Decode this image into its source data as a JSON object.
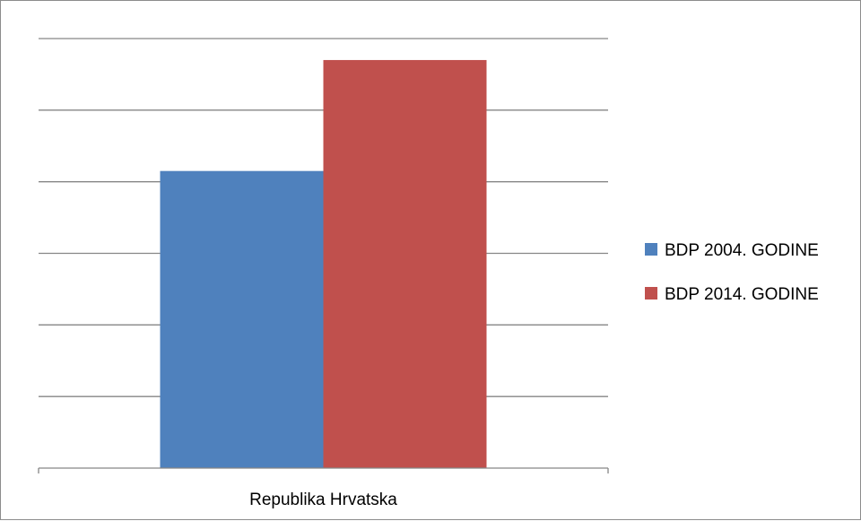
{
  "chart_data": {
    "type": "bar",
    "categories": [
      "Republika Hrvatska"
    ],
    "series": [
      {
        "name": "BDP 2004. GODINE",
        "values": [
          4.15
        ],
        "color": "#4F81BD"
      },
      {
        "name": "BDP 2014. GODINE",
        "values": [
          5.7
        ],
        "color": "#C0504D"
      }
    ],
    "title": "",
    "xlabel": "",
    "ylabel": "",
    "ylim": [
      0,
      6
    ],
    "y_tick_count": 7,
    "y_tick_labels_visible": false,
    "grid": true,
    "gridline_color": "#868686",
    "legend": "right"
  }
}
